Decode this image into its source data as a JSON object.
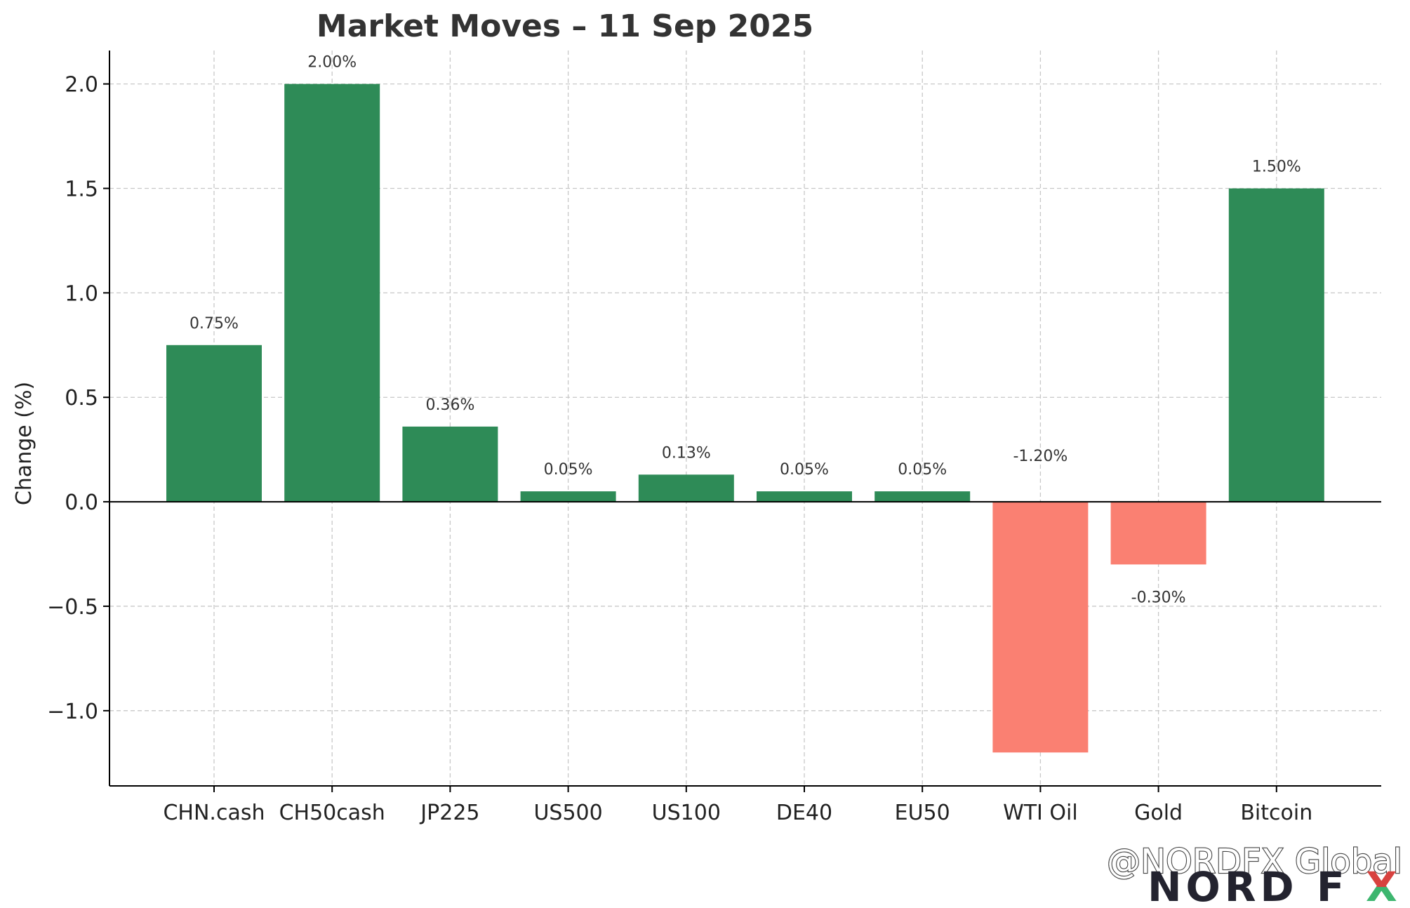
{
  "chart_data": {
    "type": "bar",
    "title": "Market Moves – 11 Sep 2025",
    "xlabel": "",
    "ylabel": "Change (%)",
    "categories": [
      "CHN.cash",
      "CH50cash",
      "JP225",
      "US500",
      "US100",
      "DE40",
      "EU50",
      "WTI Oil",
      "Gold",
      "Bitcoin"
    ],
    "values": [
      0.75,
      2.0,
      0.36,
      0.05,
      0.13,
      0.05,
      0.05,
      -1.2,
      -0.3,
      1.5
    ],
    "data_labels": [
      "0.75%",
      "2.00%",
      "0.36%",
      "0.05%",
      "0.13%",
      "0.05%",
      "0.05%",
      "-1.20%",
      "-0.30%",
      "1.50%"
    ],
    "ylim": [
      -1.36,
      2.16
    ],
    "yticks": [
      -1.0,
      -0.5,
      0.0,
      0.5,
      1.0,
      1.5,
      2.0
    ],
    "ytick_labels": [
      "−1.0",
      "−0.5",
      "0.0",
      "0.5",
      "1.0",
      "1.5",
      "2.0"
    ],
    "grid": true,
    "colors": {
      "positive": "#2e8b57",
      "negative": "#fa8072"
    }
  },
  "watermark": {
    "handle": "@NORDFX Global",
    "brand": "NORD F",
    "brand_x": "X",
    "brand_x_colors": [
      "#d8423f",
      "#3db66f"
    ]
  }
}
